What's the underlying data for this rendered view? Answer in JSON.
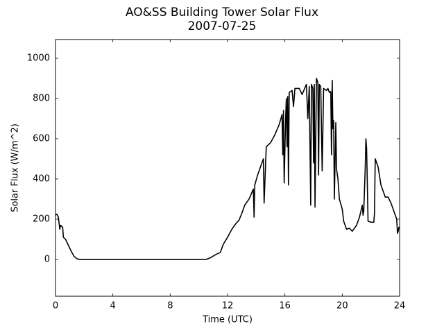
{
  "chart_data": {
    "type": "line",
    "title": "AO&SS Building Tower Solar Flux",
    "subtitle": "2007-07-25",
    "xlabel": "Time (UTC)",
    "ylabel": "Solar Flux (W/m^2)",
    "xlim": [
      0,
      24
    ],
    "ylim": [
      -183,
      1093
    ],
    "xticks": [
      0,
      4,
      8,
      12,
      16,
      20,
      24
    ],
    "yticks": [
      0,
      200,
      400,
      600,
      800,
      1000
    ],
    "series": [
      {
        "name": "Solar Flux",
        "color": "#000000",
        "x": [
          0,
          0.1,
          0.2,
          0.3,
          0.35,
          0.5,
          0.55,
          0.7,
          0.9,
          1.1,
          1.3,
          1.5,
          1.7,
          10.5,
          10.8,
          11.2,
          11.5,
          11.7,
          12,
          12.3,
          12.6,
          12.8,
          13,
          13.2,
          13.5,
          13.8,
          13.85,
          13.9,
          14.1,
          14.3,
          14.5,
          14.55,
          14.7,
          15.0,
          15.3,
          15.6,
          15.8,
          15.85,
          15.9,
          15.95,
          16.05,
          16.1,
          16.15,
          16.2,
          16.25,
          16.3,
          16.5,
          16.6,
          16.7,
          17.0,
          17.2,
          17.5,
          17.6,
          17.7,
          17.8,
          17.85,
          17.95,
          18.0,
          18.05,
          18.1,
          18.2,
          18.3,
          18.35,
          18.4,
          18.5,
          18.6,
          18.7,
          18.9,
          19.0,
          19.1,
          19.2,
          19.25,
          19.3,
          19.35,
          19.4,
          19.45,
          19.55,
          19.6,
          19.7,
          19.8,
          20.0,
          20.1,
          20.3,
          20.5,
          20.7,
          21.0,
          21.2,
          21.4,
          21.45,
          21.5,
          21.6,
          21.65,
          21.7,
          21.8,
          22.0,
          22.2,
          22.25,
          22.3,
          22.5,
          22.7,
          22.9,
          23.0,
          23.2,
          23.4,
          23.6,
          23.8,
          23.85,
          23.9,
          23.95,
          24
        ],
        "values": [
          220,
          225,
          210,
          150,
          170,
          160,
          110,
          100,
          70,
          40,
          15,
          3,
          0,
          0,
          8,
          25,
          35,
          75,
          110,
          150,
          180,
          195,
          230,
          270,
          300,
          350,
          210,
          370,
          420,
          460,
          500,
          280,
          560,
          580,
          620,
          670,
          720,
          520,
          740,
          380,
          700,
          800,
          560,
          810,
          370,
          830,
          840,
          760,
          850,
          850,
          820,
          870,
          700,
          860,
          270,
          870,
          850,
          480,
          870,
          260,
          900,
          880,
          420,
          870,
          860,
          440,
          850,
          840,
          850,
          830,
          835,
          520,
          890,
          650,
          690,
          300,
          680,
          450,
          400,
          300,
          250,
          190,
          150,
          155,
          140,
          170,
          210,
          270,
          220,
          240,
          450,
          600,
          550,
          190,
          185,
          185,
          230,
          500,
          460,
          370,
          330,
          310,
          310,
          280,
          240,
          200,
          130,
          140,
          160,
          160
        ]
      }
    ]
  }
}
